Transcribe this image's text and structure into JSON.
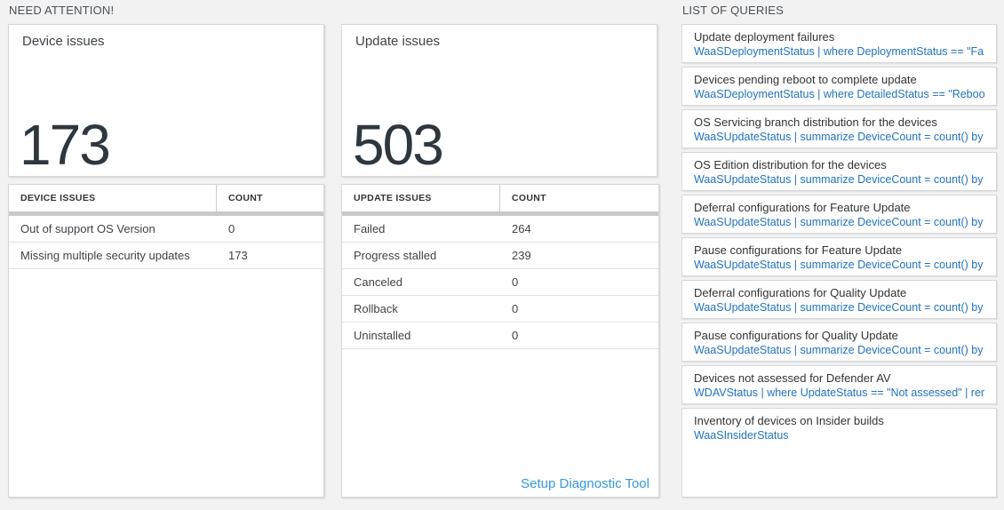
{
  "needAttention": {
    "label": "NEED ATTENTION!",
    "deviceCard": {
      "title": "Device issues",
      "value": "173"
    },
    "deviceTable": {
      "headers": [
        "DEVICE ISSUES",
        "COUNT"
      ],
      "rows": [
        {
          "issue": "Out of support OS Version",
          "count": "0"
        },
        {
          "issue": "Missing multiple security updates",
          "count": "173"
        }
      ]
    },
    "updateCard": {
      "title": "Update issues",
      "value": "503"
    },
    "updateTable": {
      "headers": [
        "UPDATE ISSUES",
        "COUNT"
      ],
      "rows": [
        {
          "issue": "Failed",
          "count": "264"
        },
        {
          "issue": "Progress stalled",
          "count": "239"
        },
        {
          "issue": "Canceled",
          "count": "0"
        },
        {
          "issue": "Rollback",
          "count": "0"
        },
        {
          "issue": "Uninstalled",
          "count": "0"
        }
      ]
    },
    "setupLink": "Setup Diagnostic Tool"
  },
  "queries": {
    "label": "LIST OF QUERIES",
    "items": [
      {
        "title": "Update deployment failures",
        "query": "WaaSDeploymentStatus | where DeploymentStatus == \"Failed\" |..."
      },
      {
        "title": "Devices pending reboot to complete update",
        "query": "WaaSDeploymentStatus | where DetailedStatus == \"Reboot pend..."
      },
      {
        "title": "OS Servicing branch distribution for the devices",
        "query": "WaaSUpdateStatus | summarize DeviceCount = count() by OSSer..."
      },
      {
        "title": "OS Edition distribution for the devices",
        "query": "WaaSUpdateStatus | summarize DeviceCount = count() by OSEdit..."
      },
      {
        "title": "Deferral configurations for Feature Update",
        "query": "WaaSUpdateStatus | summarize DeviceCount = count() by Featur..."
      },
      {
        "title": "Pause configurations for Feature Update",
        "query": "WaaSUpdateStatus | summarize DeviceCount = count() by Featur..."
      },
      {
        "title": "Deferral configurations for Quality Update",
        "query": "WaaSUpdateStatus | summarize DeviceCount = count() by Qualit..."
      },
      {
        "title": "Pause configurations for Quality Update",
        "query": "WaaSUpdateStatus | summarize DeviceCount = count() by Qualit..."
      },
      {
        "title": "Devices not assessed for Defender AV",
        "query": "WDAVStatus | where UpdateStatus == \"Not assessed\" | render ta..."
      },
      {
        "title": "Inventory of devices on Insider builds",
        "query": "WaaSInsiderStatus"
      }
    ]
  },
  "colors": {
    "page_background": "#f2f2f2",
    "card_border": "#d7d7d7",
    "metric_text": "#2e363e",
    "query_link_blue": "#2173bd",
    "setup_link_blue": "#3499dc",
    "thick_divider": "#c9c9c9"
  }
}
